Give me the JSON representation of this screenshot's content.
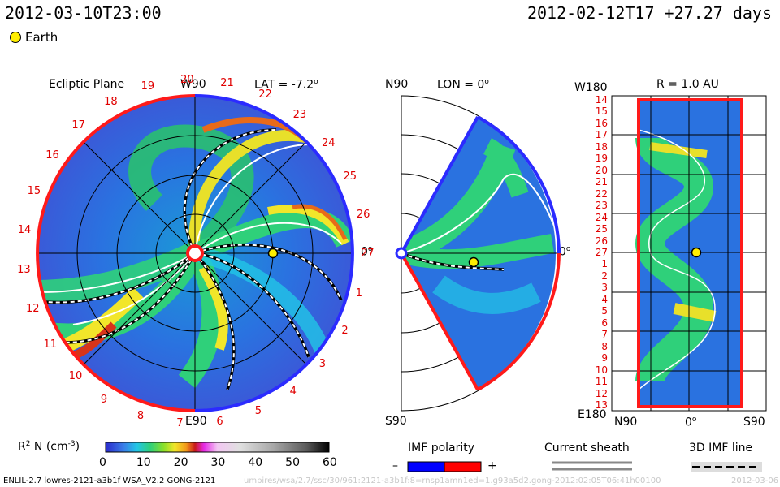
{
  "header": {
    "left_datetime": "2012-03-10T23:00",
    "right_datetime": "2012-02-12T17 +27.27 days"
  },
  "legend": {
    "earth_label": "Earth"
  },
  "panels": {
    "ecliptic": {
      "title": "Ecliptic Plane",
      "top_label": "W90",
      "lat_label": "LAT = -7.2",
      "lat_unit": "o",
      "bottom_label": "E90",
      "zero_label": "0",
      "zero_unit": "o",
      "carrington_labels": [
        "1",
        "2",
        "3",
        "4",
        "5",
        "6",
        "7",
        "8",
        "9",
        "10",
        "11",
        "12",
        "13",
        "14",
        "15",
        "16",
        "17",
        "18",
        "19",
        "20",
        "21",
        "22",
        "23",
        "24",
        "25",
        "26",
        "27"
      ]
    },
    "meridional": {
      "top_label": "N90",
      "lon_label": "LON = 0",
      "lon_unit": "o",
      "bottom_label": "S90",
      "zero_label": "0",
      "zero_unit": "o"
    },
    "radial": {
      "title": "R = 1.0 AU",
      "top_left_label": "W180",
      "bottom_left_label": "E180",
      "x_labels": [
        "N90",
        "0",
        "S90"
      ],
      "x_zero_unit": "o",
      "rows": [
        "14",
        "15",
        "16",
        "17",
        "18",
        "19",
        "20",
        "21",
        "22",
        "23",
        "24",
        "25",
        "26",
        "27",
        "1",
        "2",
        "3",
        "4",
        "5",
        "6",
        "7",
        "8",
        "9",
        "10",
        "11",
        "12",
        "13"
      ]
    }
  },
  "colorbar": {
    "label": "R",
    "label_sup": "2",
    "label_rest": " N (cm",
    "label_exp": "-3",
    "label_close": ")",
    "ticks": [
      "0",
      "10",
      "20",
      "30",
      "40",
      "50",
      "60"
    ]
  },
  "imf": {
    "title": "IMF polarity",
    "minus": "–",
    "plus": "+"
  },
  "sheath": {
    "title": "Current sheath"
  },
  "imf3d": {
    "title": "3D IMF line"
  },
  "footer": {
    "model": "ENLIL-2.7 lowres-2121-a3b1f WSA_V2.2 GONG-2121",
    "path": "umpires/wsa/2.7/ssc/30/961:2121-a3b1f:8=rnsp1amn1ed=1.g93a5d2.gong-2012:02:05T06:41h00100",
    "date": "2012-03-06"
  },
  "colors": {
    "red_boundary": "#ff1a1a",
    "blue_boundary": "#2b2bff",
    "earth": "#ffee00",
    "imf_negative": "#0000ff",
    "imf_positive": "#ff0000"
  }
}
